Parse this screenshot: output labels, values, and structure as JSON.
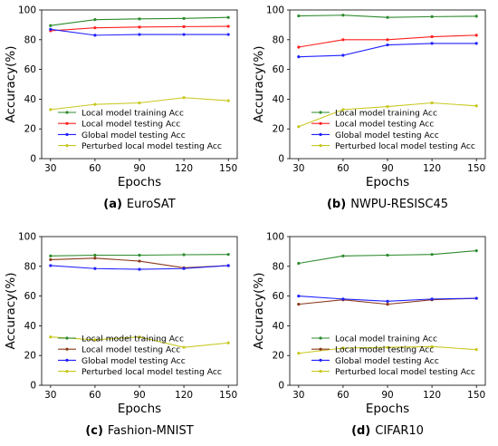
{
  "chart_data": [
    {
      "type": "line",
      "caption_label": "(a)",
      "caption_text": "EuroSAT",
      "xlabel": "Epochs",
      "ylabel": "Accuracy(%)",
      "xlim": [
        24,
        156
      ],
      "ylim": [
        0,
        100
      ],
      "x": [
        30,
        60,
        90,
        120,
        150
      ],
      "xticks": [
        "30",
        "60",
        "90",
        "120",
        "150"
      ],
      "yticks": [
        "0",
        "20",
        "40",
        "60",
        "80",
        "100"
      ],
      "legend_position": "lower-left",
      "series": [
        {
          "name": "Local model training Acc",
          "color": "#2e8b2e",
          "values": [
            89.5,
            93.5,
            94.0,
            94.3,
            95.0
          ]
        },
        {
          "name": "Local model testing Acc",
          "color": "#ff2020",
          "values": [
            86.0,
            88.0,
            88.5,
            88.8,
            89.0
          ]
        },
        {
          "name": "Global model testing Acc",
          "color": "#2020ff",
          "values": [
            87.0,
            83.0,
            83.5,
            83.5,
            83.5
          ]
        },
        {
          "name": "Perturbed local model testing Acc",
          "color": "#c8c820",
          "values": [
            33.0,
            36.5,
            37.5,
            41.0,
            39.0
          ]
        }
      ]
    },
    {
      "type": "line",
      "caption_label": "(b)",
      "caption_text": "NWPU-RESISC45",
      "xlabel": "Epochs",
      "ylabel": "Accuracy(%)",
      "xlim": [
        24,
        156
      ],
      "ylim": [
        0,
        100
      ],
      "x": [
        30,
        60,
        90,
        120,
        150
      ],
      "xticks": [
        "30",
        "60",
        "90",
        "120",
        "150"
      ],
      "yticks": [
        "0",
        "20",
        "40",
        "60",
        "80",
        "100"
      ],
      "legend_position": "lower-right",
      "series": [
        {
          "name": "Local model training Acc",
          "color": "#2e8b2e",
          "values": [
            96.0,
            96.5,
            95.0,
            95.5,
            95.8
          ]
        },
        {
          "name": "Local model testing Acc",
          "color": "#ff2020",
          "values": [
            75.0,
            80.0,
            80.0,
            82.0,
            83.0
          ]
        },
        {
          "name": "Global model testing Acc",
          "color": "#2020ff",
          "values": [
            68.5,
            69.5,
            76.5,
            77.5,
            77.5
          ]
        },
        {
          "name": "Perturbed local model testing Acc",
          "color": "#c8c820",
          "values": [
            21.5,
            33.0,
            35.0,
            37.5,
            35.5
          ]
        }
      ]
    },
    {
      "type": "line",
      "caption_label": "(c)",
      "caption_text": "Fashion-MNIST",
      "xlabel": "Epochs",
      "ylabel": "Accuracy(%)",
      "xlim": [
        24,
        156
      ],
      "ylim": [
        0,
        100
      ],
      "x": [
        30,
        60,
        90,
        120,
        150
      ],
      "xticks": [
        "30",
        "60",
        "90",
        "120",
        "150"
      ],
      "yticks": [
        "0",
        "20",
        "40",
        "60",
        "80",
        "100"
      ],
      "legend_position": "lower-left",
      "series": [
        {
          "name": "Local model training Acc",
          "color": "#2e8b2e",
          "values": [
            87.0,
            87.5,
            87.5,
            87.8,
            88.0
          ]
        },
        {
          "name": "Local model testing Acc",
          "color": "#8b3a1a",
          "values": [
            84.5,
            85.5,
            83.5,
            79.0,
            80.5
          ]
        },
        {
          "name": "Global model testing Acc",
          "color": "#2020ff",
          "values": [
            80.5,
            78.5,
            78.0,
            78.5,
            80.5
          ]
        },
        {
          "name": "Perturbed local model testing Acc",
          "color": "#c8c820",
          "values": [
            32.5,
            30.5,
            32.5,
            25.5,
            28.5
          ]
        }
      ]
    },
    {
      "type": "line",
      "caption_label": "(d)",
      "caption_text": "CIFAR10",
      "xlabel": "Epochs",
      "ylabel": "Accuracy(%)",
      "xlim": [
        24,
        156
      ],
      "ylim": [
        0,
        100
      ],
      "x": [
        30,
        60,
        90,
        120,
        150
      ],
      "xticks": [
        "30",
        "60",
        "90",
        "120",
        "150"
      ],
      "yticks": [
        "0",
        "20",
        "40",
        "60",
        "80",
        "100"
      ],
      "legend_position": "lower-right",
      "series": [
        {
          "name": "Local model training Acc",
          "color": "#2e8b2e",
          "values": [
            82.0,
            87.0,
            87.5,
            88.0,
            90.5
          ]
        },
        {
          "name": "Local model testing Acc",
          "color": "#8b3a1a",
          "values": [
            54.5,
            57.5,
            54.5,
            57.5,
            58.5
          ]
        },
        {
          "name": "Global model testing Acc",
          "color": "#2020ff",
          "values": [
            60.0,
            58.0,
            56.5,
            58.0,
            58.5
          ]
        },
        {
          "name": "Perturbed local model testing Acc",
          "color": "#c8c820",
          "values": [
            21.5,
            25.0,
            25.5,
            26.0,
            24.0
          ]
        }
      ]
    }
  ]
}
